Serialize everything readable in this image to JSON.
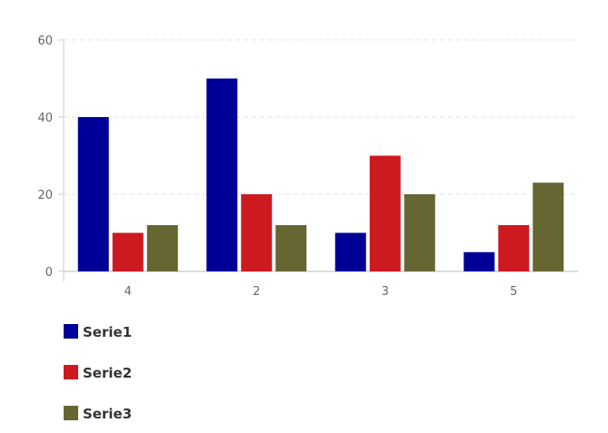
{
  "chart_data": {
    "type": "bar",
    "categories": [
      "4",
      "2",
      "3",
      "5"
    ],
    "series": [
      {
        "name": "Serie1",
        "values": [
          40,
          50,
          10,
          5
        ],
        "color": "#000099"
      },
      {
        "name": "Serie2",
        "values": [
          10,
          20,
          30,
          12
        ],
        "color": "#cc1a20"
      },
      {
        "name": "Serie3",
        "values": [
          12,
          12,
          20,
          23
        ],
        "color": "#666633"
      }
    ],
    "y_ticks": [
      "0",
      "20",
      "40",
      "60"
    ],
    "ylim": [
      0,
      60
    ],
    "grid": true,
    "grid_style": "dashed",
    "legend_position": "bottom-left",
    "title": "",
    "xlabel": "",
    "ylabel": ""
  }
}
